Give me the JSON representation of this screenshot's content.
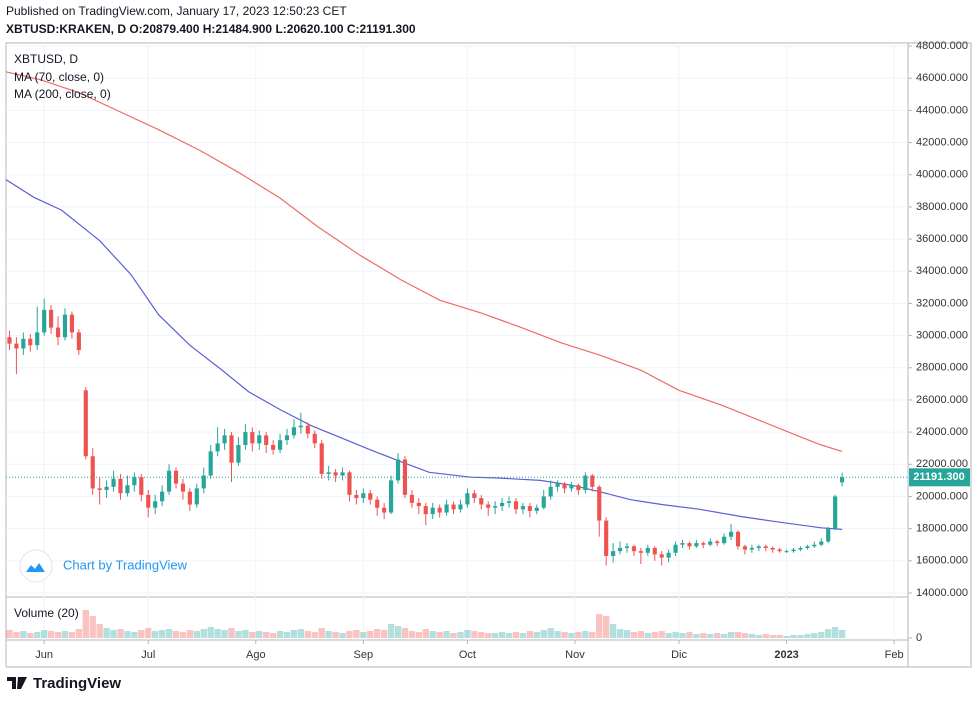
{
  "header": {
    "published": "Published on TradingView.com, January 17, 2023 12:50:23 CET",
    "symbol_line": "XBTUSD:KRAKEN, D O:20879.400 H:21484.900 L:20620.100 C:21191.300"
  },
  "watermark": "Chart by TradingView",
  "footer_brand": "TradingView",
  "chart_data": {
    "type": "candlestick",
    "title": "XBTUSD, D",
    "up_color": "#26a69a",
    "down_color": "#ef5350",
    "grid": true,
    "xlim": [
      -1,
      259
    ],
    "xticks": [
      {
        "value": 10,
        "label": "Jun"
      },
      {
        "value": 40,
        "label": "Jul"
      },
      {
        "value": 71,
        "label": "Ago"
      },
      {
        "value": 102,
        "label": "Sep"
      },
      {
        "value": 132,
        "label": "Oct"
      },
      {
        "value": 163,
        "label": "Nov"
      },
      {
        "value": 193,
        "label": "Dic"
      },
      {
        "value": 224,
        "label": "2023"
      },
      {
        "value": 255,
        "label": "Feb"
      }
    ],
    "ylim": [
      13750,
      48190
    ],
    "yticks": [
      {
        "value": 14000,
        "label": "14000.000"
      },
      {
        "value": 16000,
        "label": "16000.000"
      },
      {
        "value": 18000,
        "label": "18000.000"
      },
      {
        "value": 20000,
        "label": "20000.000"
      },
      {
        "value": 22000,
        "label": "22000.000"
      },
      {
        "value": 24000,
        "label": "24000.000"
      },
      {
        "value": 26000,
        "label": "26000.000"
      },
      {
        "value": 28000,
        "label": "28000.000"
      },
      {
        "value": 30000,
        "label": "30000.000"
      },
      {
        "value": 32000,
        "label": "32000.000"
      },
      {
        "value": 34000,
        "label": "34000.000"
      },
      {
        "value": 36000,
        "label": "36000.000"
      },
      {
        "value": 38000,
        "label": "38000.000"
      },
      {
        "value": 40000,
        "label": "40000.000"
      },
      {
        "value": 42000,
        "label": "42000.000"
      },
      {
        "value": 44000,
        "label": "44000.000"
      },
      {
        "value": 46000,
        "label": "46000.000"
      },
      {
        "value": 48000,
        "label": "48000.000"
      }
    ],
    "x": [
      0,
      2,
      4,
      6,
      8,
      10,
      12,
      14,
      16,
      18,
      20,
      22,
      24,
      26,
      28,
      30,
      32,
      34,
      36,
      38,
      40,
      42,
      44,
      46,
      48,
      50,
      52,
      54,
      56,
      58,
      60,
      62,
      64,
      66,
      68,
      70,
      72,
      74,
      76,
      78,
      80,
      82,
      84,
      86,
      88,
      90,
      92,
      94,
      96,
      98,
      100,
      102,
      104,
      106,
      108,
      110,
      112,
      114,
      116,
      118,
      120,
      122,
      124,
      126,
      128,
      130,
      132,
      134,
      136,
      138,
      140,
      142,
      144,
      146,
      148,
      150,
      152,
      154,
      156,
      158,
      160,
      162,
      164,
      166,
      168,
      170,
      172,
      174,
      176,
      178,
      180,
      182,
      184,
      186,
      188,
      190,
      192,
      194,
      196,
      198,
      200,
      202,
      204,
      206,
      208,
      210,
      212,
      214,
      216,
      218,
      220,
      222,
      224,
      226,
      228,
      230,
      232,
      234,
      236,
      238,
      240
    ],
    "open": [
      29900,
      29500,
      29200,
      29800,
      29400,
      30200,
      31600,
      30500,
      29900,
      31300,
      30200,
      26600,
      22500,
      20500,
      20400,
      20600,
      21100,
      20200,
      20700,
      21200,
      20100,
      19300,
      19700,
      20300,
      21600,
      20800,
      20300,
      19500,
      20500,
      21300,
      22800,
      23300,
      23800,
      22100,
      23200,
      24000,
      23300,
      23800,
      23200,
      22900,
      23500,
      23800,
      24300,
      24400,
      23900,
      23300,
      21400,
      21500,
      21300,
      21500,
      20100,
      19900,
      20200,
      19800,
      19300,
      19000,
      21000,
      22300,
      20100,
      19600,
      19400,
      18900,
      19300,
      19000,
      19500,
      19200,
      19500,
      20200,
      19900,
      19500,
      19300,
      19400,
      19600,
      19700,
      19200,
      19400,
      19100,
      19300,
      20000,
      20600,
      20800,
      20500,
      20700,
      20400,
      21300,
      20600,
      18500,
      16300,
      16600,
      16800,
      16900,
      16600,
      16500,
      16800,
      16400,
      16200,
      16500,
      17000,
      17100,
      16900,
      17100,
      17000,
      17200,
      17100,
      17500,
      17800,
      16900,
      16700,
      16800,
      16900,
      16800,
      16700,
      16600,
      16600,
      16700,
      16800,
      16900,
      17000,
      17200,
      18000,
      20879.4
    ],
    "high": [
      30300,
      29900,
      30200,
      30100,
      31800,
      32300,
      31900,
      31200,
      31700,
      31500,
      30400,
      26800,
      23000,
      21200,
      21000,
      21600,
      21400,
      21300,
      21500,
      21400,
      20400,
      20100,
      20700,
      22000,
      21800,
      21100,
      20500,
      20800,
      21800,
      23200,
      24300,
      24200,
      24000,
      23700,
      24500,
      24300,
      24100,
      24000,
      23500,
      23900,
      24200,
      24800,
      25200,
      24600,
      24100,
      23500,
      21900,
      21700,
      21800,
      21600,
      20400,
      20500,
      20400,
      20000,
      19600,
      21300,
      22700,
      22500,
      20400,
      19900,
      19600,
      19600,
      19500,
      19800,
      19700,
      19800,
      20500,
      20400,
      20100,
      19700,
      19700,
      19900,
      20000,
      19900,
      19600,
      19600,
      19500,
      20400,
      21000,
      21000,
      20900,
      20900,
      20800,
      21500,
      21400,
      20700,
      18700,
      17100,
      17200,
      17100,
      17000,
      16800,
      17000,
      16900,
      16600,
      16700,
      17200,
      17300,
      17200,
      17300,
      17200,
      17400,
      17300,
      17700,
      18300,
      17900,
      17000,
      17000,
      17000,
      17000,
      16900,
      16800,
      16700,
      16800,
      16900,
      17000,
      17200,
      17400,
      18100,
      20100,
      21484.9
    ],
    "low": [
      29100,
      27600,
      28800,
      29000,
      29100,
      30000,
      30100,
      29400,
      29700,
      29800,
      28800,
      22300,
      20100,
      19500,
      19900,
      20300,
      19800,
      20000,
      20300,
      19700,
      18700,
      18900,
      19400,
      20100,
      20500,
      19800,
      19100,
      19300,
      20200,
      21100,
      22500,
      22900,
      20900,
      21900,
      22900,
      22800,
      22900,
      22700,
      22600,
      22700,
      23200,
      23600,
      23900,
      23600,
      23000,
      21100,
      21000,
      20900,
      21000,
      19700,
      19500,
      19600,
      19500,
      18800,
      18600,
      18900,
      20800,
      19900,
      19300,
      18900,
      18200,
      18600,
      18700,
      18800,
      18900,
      19000,
      19300,
      19600,
      19200,
      18800,
      18900,
      19100,
      19300,
      18900,
      18900,
      18700,
      18900,
      19200,
      19800,
      20300,
      20200,
      20300,
      20100,
      20200,
      20300,
      17500,
      15700,
      15900,
      16400,
      16500,
      16300,
      15800,
      16300,
      16000,
      15700,
      15900,
      16300,
      16800,
      16700,
      16800,
      16800,
      16900,
      16900,
      17000,
      17300,
      16700,
      16400,
      16500,
      16600,
      16600,
      16500,
      16500,
      16500,
      16500,
      16600,
      16700,
      16800,
      16900,
      17100,
      17900,
      20620.1
    ],
    "close": [
      29500,
      29200,
      29800,
      29400,
      30200,
      31600,
      30500,
      29900,
      31300,
      30200,
      29100,
      22500,
      20500,
      20400,
      20600,
      21100,
      20200,
      20700,
      21200,
      20100,
      19300,
      19700,
      20300,
      21600,
      20800,
      20300,
      19500,
      20500,
      21300,
      22800,
      23300,
      23800,
      22100,
      23200,
      24000,
      23300,
      23800,
      23200,
      22900,
      23500,
      23800,
      24300,
      24400,
      23900,
      23300,
      21400,
      21500,
      21300,
      21500,
      20100,
      19900,
      20200,
      19800,
      19300,
      19000,
      21000,
      22300,
      20100,
      19600,
      19400,
      18900,
      19300,
      19000,
      19500,
      19200,
      19500,
      20200,
      19900,
      19500,
      19300,
      19400,
      19600,
      19700,
      19200,
      19400,
      19100,
      19300,
      20000,
      20600,
      20800,
      20500,
      20700,
      20400,
      21300,
      20600,
      18500,
      16300,
      16600,
      16800,
      16900,
      16600,
      16500,
      16800,
      16400,
      16200,
      16500,
      17000,
      17100,
      16900,
      17100,
      17000,
      17200,
      17100,
      17500,
      17800,
      16900,
      16700,
      16800,
      16900,
      16800,
      16700,
      16600,
      16600,
      16700,
      16800,
      16900,
      17000,
      17200,
      18000,
      20000,
      21191.3
    ],
    "series": [
      {
        "name": "MA (70, close, 0)",
        "color": "#5b5fd6",
        "x": [
          -1,
          7,
          15,
          26,
          35,
          43,
          52,
          61,
          69,
          78,
          87,
          95,
          104,
          113,
          121,
          133,
          141,
          153,
          162,
          170,
          179,
          188,
          199,
          211,
          222,
          234,
          240
        ],
        "values": [
          39700,
          38600,
          37800,
          35900,
          33800,
          31300,
          29400,
          27900,
          26500,
          25400,
          24400,
          23700,
          22900,
          22150,
          21500,
          21200,
          21150,
          21000,
          20700,
          20300,
          19800,
          19500,
          19200,
          18750,
          18400,
          18050,
          17950
        ]
      },
      {
        "name": "MA (200, close, 0)",
        "color": "#f06b66",
        "x": [
          -1,
          9,
          20,
          32,
          43,
          55,
          66,
          78,
          89,
          101,
          113,
          124,
          136,
          147,
          159,
          170,
          182,
          193,
          205,
          216,
          228,
          234,
          240
        ],
        "values": [
          46400,
          45900,
          45100,
          43900,
          42800,
          41500,
          40150,
          38550,
          36750,
          35000,
          33450,
          32200,
          31400,
          30550,
          29550,
          28800,
          27850,
          26600,
          25700,
          24750,
          23700,
          23200,
          22800
        ]
      }
    ],
    "last_price": {
      "value": 21191.3,
      "label": "21191.300"
    },
    "volume": {
      "title": "Volume (20)",
      "ylim": [
        0,
        40
      ],
      "yticks": [
        0
      ],
      "values": [
        8,
        6,
        7,
        5,
        6,
        8,
        7,
        6,
        7,
        6,
        9,
        28,
        22,
        14,
        10,
        8,
        9,
        7,
        6,
        8,
        10,
        7,
        8,
        9,
        7,
        6,
        8,
        7,
        9,
        11,
        9,
        8,
        10,
        7,
        8,
        6,
        7,
        6,
        5,
        7,
        6,
        8,
        9,
        7,
        6,
        10,
        7,
        6,
        5,
        7,
        8,
        6,
        7,
        9,
        8,
        14,
        12,
        10,
        7,
        6,
        9,
        7,
        6,
        7,
        5,
        6,
        8,
        7,
        6,
        5,
        5,
        6,
        5,
        6,
        5,
        7,
        6,
        8,
        10,
        7,
        6,
        5,
        6,
        7,
        6,
        24,
        22,
        14,
        9,
        8,
        6,
        7,
        5,
        6,
        7,
        5,
        6,
        5,
        6,
        4,
        5,
        4,
        5,
        4,
        6,
        6,
        5,
        4,
        3,
        4,
        3,
        3,
        2,
        3,
        3,
        4,
        5,
        6,
        9,
        11,
        8
      ]
    }
  }
}
